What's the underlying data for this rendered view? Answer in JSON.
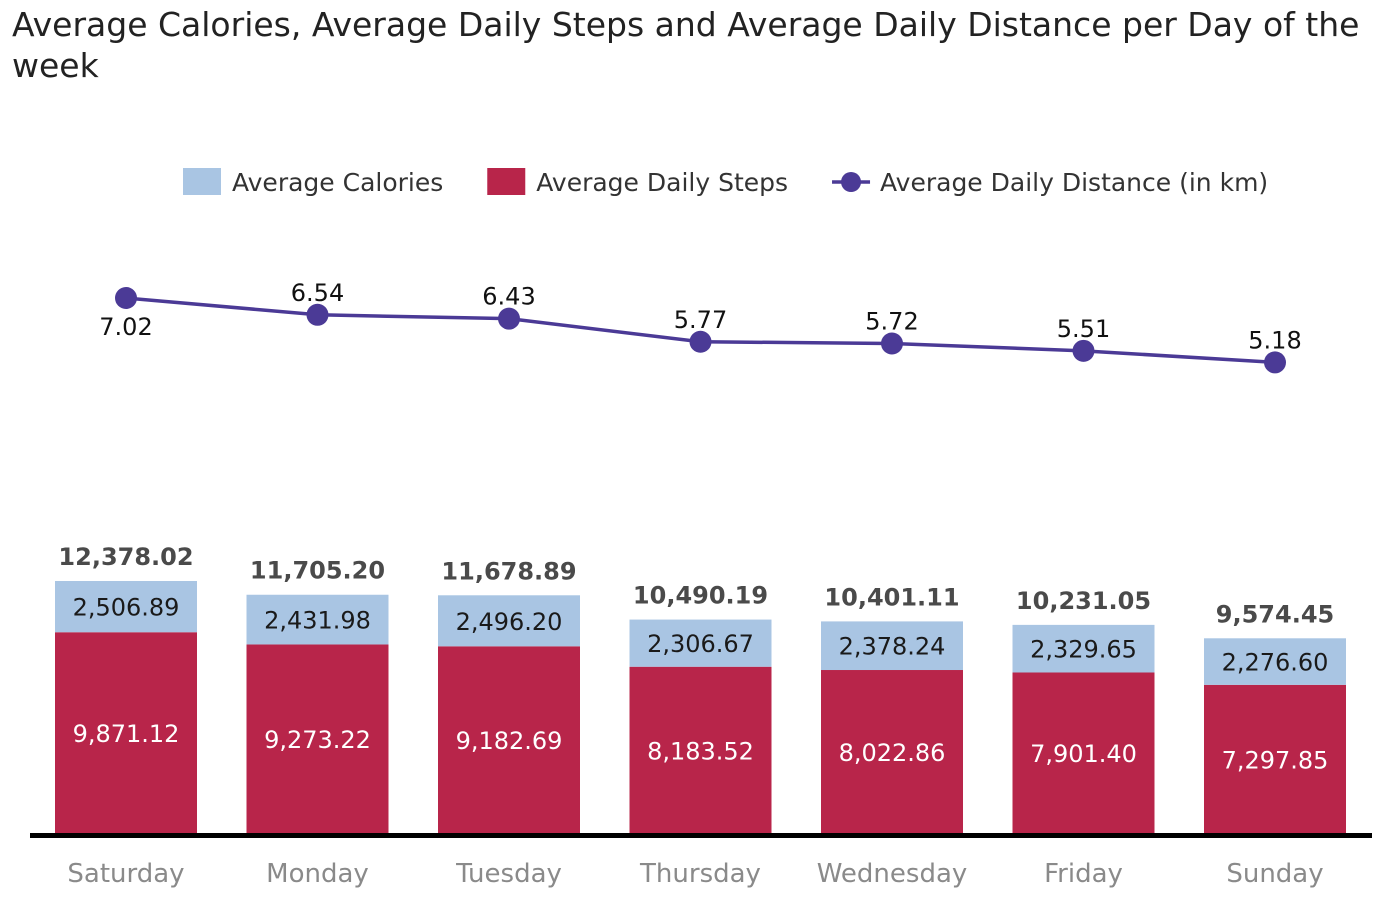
{
  "chart_data": {
    "type": "bar",
    "stacked": true,
    "title": "Average Calories, Average Daily Steps and Average Daily Distance per Day of the week",
    "title_lines": [
      "Average Calories, Average Daily Steps and Average Daily Distance per Day of the",
      "week"
    ],
    "legend_position": "top",
    "grid": false,
    "categories": [
      "Saturday",
      "Monday",
      "Tuesday",
      "Thursday",
      "Wednesday",
      "Friday",
      "Sunday"
    ],
    "series": [
      {
        "name": "Average Daily Steps",
        "type": "bar",
        "color": "#b8254a",
        "values": [
          9871.12,
          9273.22,
          9182.69,
          8183.52,
          8022.86,
          7901.4,
          7297.85
        ],
        "labels": [
          "9,871.12",
          "9,273.22",
          "9,182.69",
          "8,183.52",
          "8,022.86",
          "7,901.40",
          "7,297.85"
        ]
      },
      {
        "name": "Average Calories",
        "type": "bar",
        "color": "#a9c5e3",
        "values": [
          2506.89,
          2431.98,
          2496.2,
          2306.67,
          2378.24,
          2329.65,
          2276.6
        ],
        "labels": [
          "2,506.89",
          "2,431.98",
          "2,496.20",
          "2,306.67",
          "2,378.24",
          "2,329.65",
          "2,276.60"
        ]
      },
      {
        "name": "Average Daily Distance (in km)",
        "type": "line",
        "color": "#4b3a96",
        "values": [
          7.02,
          6.54,
          6.43,
          5.77,
          5.72,
          5.51,
          5.18
        ],
        "labels": [
          "7.02",
          "6.54",
          "6.43",
          "5.77",
          "5.72",
          "5.51",
          "5.18"
        ]
      }
    ],
    "totals": {
      "values": [
        12378.02,
        11705.2,
        11678.89,
        10490.19,
        10401.11,
        10231.05,
        9574.45
      ],
      "labels": [
        "12,378.02",
        "11,705.20",
        "11,678.89",
        "10,490.19",
        "10,401.11",
        "10,231.05",
        "9,574.45"
      ]
    },
    "legend": [
      {
        "label": "Average Calories",
        "marker": "square",
        "color": "#a9c5e3"
      },
      {
        "label": "Average Daily Steps",
        "marker": "square",
        "color": "#b8254a"
      },
      {
        "label": "Average Daily Distance (in km)",
        "marker": "line-dot",
        "color": "#4b3a96"
      }
    ]
  }
}
